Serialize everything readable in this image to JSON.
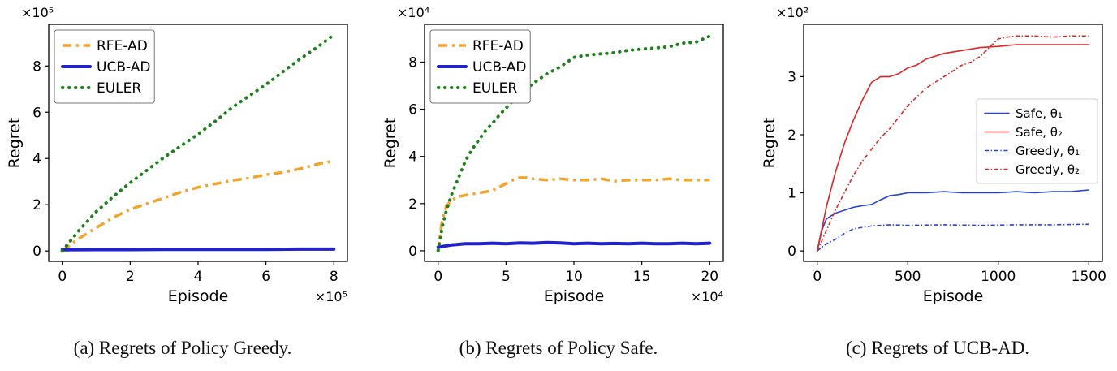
{
  "figure": {
    "captions": [
      "(a) Regrets of Policy Greedy.",
      "(b) Regrets of Policy Safe.",
      "(c) Regrets of UCB-AD."
    ]
  },
  "chart_data": [
    {
      "type": "line",
      "title": "",
      "xlabel": "Episode",
      "ylabel": "Regret",
      "x_offset": "×10⁵",
      "y_offset": "×10⁵",
      "xlim": [
        -0.4,
        8.4
      ],
      "ylim": [
        -0.45,
        9.8
      ],
      "xticks": [
        0,
        2,
        4,
        6,
        8
      ],
      "yticks": [
        0,
        2,
        4,
        6,
        8
      ],
      "grid": false,
      "legend": {
        "position": "upper-left",
        "font": 17,
        "sample": 34,
        "row": 26,
        "frame_color": "#777777"
      },
      "series": [
        {
          "name": "RFE-AD",
          "color": "#F2A42D",
          "style": "dashdot",
          "width": 3.5,
          "x": [
            0,
            0.5,
            1,
            1.5,
            2,
            2.5,
            3,
            3.5,
            4,
            4.5,
            5,
            5.5,
            6,
            6.5,
            7,
            7.5,
            8
          ],
          "y": [
            0,
            0.55,
            1.0,
            1.45,
            1.8,
            2.05,
            2.3,
            2.55,
            2.75,
            2.9,
            3.05,
            3.15,
            3.3,
            3.4,
            3.55,
            3.75,
            3.9
          ]
        },
        {
          "name": "UCB-AD",
          "color": "#2222CC",
          "style": "solid",
          "width": 4,
          "x": [
            0,
            1,
            2,
            3,
            4,
            5,
            6,
            7,
            8
          ],
          "y": [
            0.05,
            0.06,
            0.06,
            0.07,
            0.07,
            0.07,
            0.07,
            0.08,
            0.08
          ]
        },
        {
          "name": "EULER",
          "color": "#208020",
          "style": "dotted",
          "width": 4,
          "x": [
            0,
            0.5,
            1,
            1.5,
            2,
            2.5,
            3,
            3.5,
            4,
            4.5,
            5,
            5.5,
            6,
            6.5,
            7,
            7.5,
            8
          ],
          "y": [
            0,
            0.9,
            1.7,
            2.35,
            2.95,
            3.5,
            4.05,
            4.55,
            5.05,
            5.6,
            6.2,
            6.7,
            7.2,
            7.75,
            8.3,
            8.8,
            9.35
          ]
        }
      ]
    },
    {
      "type": "line",
      "title": "",
      "xlabel": "Episode",
      "ylabel": "Regret",
      "x_offset": "×10⁴",
      "y_offset": "×10⁴",
      "xlim": [
        -1,
        21
      ],
      "ylim": [
        -0.45,
        9.6
      ],
      "xticks": [
        0,
        5,
        10,
        15,
        20
      ],
      "yticks": [
        0,
        2,
        4,
        6,
        8
      ],
      "grid": false,
      "legend": {
        "position": "upper-left",
        "font": 17,
        "sample": 34,
        "row": 26,
        "frame_color": "#777777"
      },
      "series": [
        {
          "name": "RFE-AD",
          "color": "#F2A42D",
          "style": "dashdot",
          "width": 3.5,
          "x": [
            0,
            0.3,
            0.6,
            1,
            1.5,
            2,
            3,
            4,
            5,
            5.5,
            6,
            6.5,
            7,
            8,
            9,
            10,
            11,
            12,
            13,
            14,
            15,
            16,
            17,
            18,
            19,
            20
          ],
          "y": [
            0,
            1.3,
            1.9,
            2.15,
            2.3,
            2.35,
            2.45,
            2.55,
            2.85,
            3.0,
            3.1,
            3.1,
            3.05,
            3.0,
            3.05,
            3.0,
            3.0,
            3.05,
            2.95,
            3.0,
            3.0,
            3.0,
            3.05,
            3.0,
            3.0,
            3.0
          ]
        },
        {
          "name": "UCB-AD",
          "color": "#2222CC",
          "style": "solid",
          "width": 4,
          "x": [
            0,
            1,
            2,
            3,
            4,
            5,
            6,
            7,
            8,
            9,
            10,
            11,
            12,
            13,
            14,
            15,
            16,
            17,
            18,
            19,
            20
          ],
          "y": [
            0.15,
            0.25,
            0.3,
            0.3,
            0.32,
            0.3,
            0.33,
            0.32,
            0.35,
            0.33,
            0.3,
            0.32,
            0.3,
            0.31,
            0.3,
            0.32,
            0.3,
            0.3,
            0.32,
            0.3,
            0.32
          ]
        },
        {
          "name": "EULER",
          "color": "#208020",
          "style": "dotted",
          "width": 4,
          "x": [
            0,
            0.3,
            0.6,
            1,
            1.5,
            2,
            2.5,
            3,
            3.5,
            4,
            4.5,
            5,
            5.5,
            6,
            6.5,
            7,
            7.5,
            8,
            8.5,
            9,
            9.5,
            10,
            11,
            12,
            13,
            14,
            15,
            16,
            17,
            18,
            19,
            20
          ],
          "y": [
            0,
            1.0,
            1.7,
            2.4,
            3.1,
            3.8,
            4.3,
            4.7,
            5.1,
            5.4,
            5.75,
            6.05,
            6.35,
            6.6,
            6.85,
            7.1,
            7.3,
            7.5,
            7.65,
            7.8,
            8.0,
            8.2,
            8.3,
            8.35,
            8.4,
            8.5,
            8.55,
            8.6,
            8.65,
            8.8,
            8.85,
            9.1
          ]
        }
      ]
    },
    {
      "type": "line",
      "title": "",
      "xlabel": "Episode",
      "ylabel": "Regret",
      "x_offset": null,
      "y_offset": "×10²",
      "xlim": [
        -75,
        1575
      ],
      "ylim": [
        -0.18,
        3.9
      ],
      "xticks": [
        0,
        500,
        1000,
        1500
      ],
      "yticks": [
        0,
        1,
        2,
        3
      ],
      "grid": false,
      "legend": {
        "position": "center-right",
        "font": 15,
        "sample": 30,
        "row": 23,
        "frame_color": "#cccccc"
      },
      "series": [
        {
          "name": "Safe, θ₁",
          "color": "#2843D0",
          "style": "solid",
          "width": 1.6,
          "x": [
            0,
            25,
            50,
            100,
            150,
            200,
            250,
            300,
            350,
            400,
            450,
            500,
            600,
            700,
            800,
            900,
            1000,
            1100,
            1200,
            1300,
            1400,
            1500
          ],
          "y": [
            0,
            0.35,
            0.55,
            0.65,
            0.7,
            0.75,
            0.78,
            0.8,
            0.88,
            0.95,
            0.97,
            1.0,
            1.0,
            1.02,
            1.0,
            1.0,
            1.0,
            1.02,
            1.0,
            1.02,
            1.02,
            1.05
          ]
        },
        {
          "name": "Safe, θ₂",
          "color": "#E02525",
          "style": "solid",
          "width": 1.6,
          "x": [
            0,
            50,
            100,
            150,
            200,
            250,
            300,
            350,
            400,
            450,
            500,
            550,
            600,
            700,
            800,
            900,
            1000,
            1100,
            1200,
            1300,
            1400,
            1500
          ],
          "y": [
            0,
            0.75,
            1.35,
            1.85,
            2.25,
            2.6,
            2.9,
            3.0,
            3.0,
            3.05,
            3.15,
            3.2,
            3.3,
            3.4,
            3.45,
            3.5,
            3.52,
            3.55,
            3.55,
            3.55,
            3.55,
            3.55
          ]
        },
        {
          "name": "Greedy, θ₁",
          "color": "#2843D0",
          "style": "dashdot",
          "width": 1.6,
          "x": [
            0,
            50,
            100,
            150,
            200,
            300,
            400,
            500,
            700,
            900,
            1100,
            1300,
            1500
          ],
          "y": [
            0,
            0.12,
            0.2,
            0.3,
            0.38,
            0.43,
            0.45,
            0.44,
            0.45,
            0.44,
            0.45,
            0.45,
            0.46
          ]
        },
        {
          "name": "Greedy, θ₂",
          "color": "#E02525",
          "style": "dashdot",
          "width": 1.6,
          "x": [
            0,
            50,
            100,
            150,
            200,
            250,
            300,
            350,
            400,
            450,
            500,
            550,
            600,
            650,
            700,
            750,
            800,
            850,
            900,
            950,
            1000,
            1050,
            1100,
            1200,
            1300,
            1400,
            1500
          ],
          "y": [
            0,
            0.35,
            0.7,
            1.0,
            1.3,
            1.55,
            1.75,
            1.95,
            2.1,
            2.3,
            2.5,
            2.65,
            2.8,
            2.9,
            3.0,
            3.1,
            3.2,
            3.25,
            3.35,
            3.5,
            3.65,
            3.68,
            3.7,
            3.7,
            3.68,
            3.7,
            3.7
          ]
        }
      ]
    }
  ]
}
